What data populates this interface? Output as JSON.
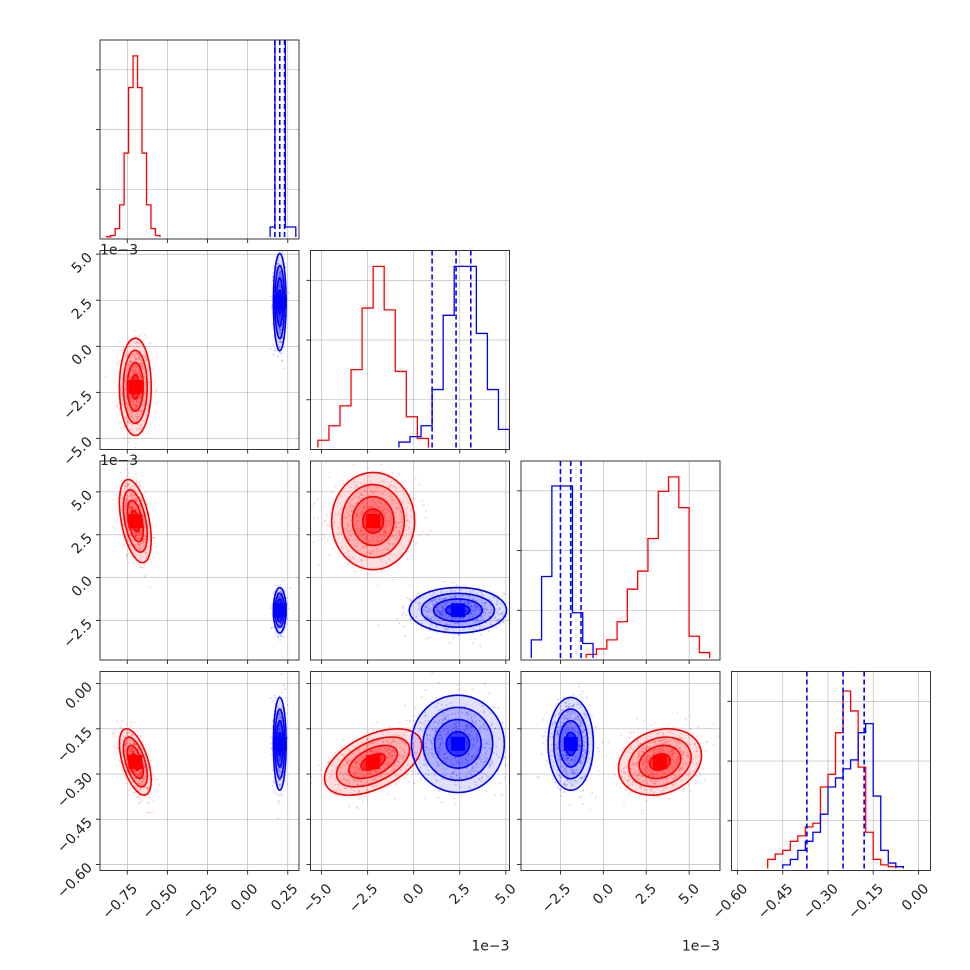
{
  "chart_data": {
    "type": "corner",
    "n_params": 4,
    "grid": true,
    "colors": {
      "red": "#ff0000",
      "blue": "#0000ff"
    },
    "series": [
      {
        "color": "#ff0000",
        "means": [
          -0.7,
          -0.0022,
          0.0033,
          -0.26
        ],
        "sds": [
          0.045,
          0.0012,
          0.0011,
          0.05
        ],
        "corr": {
          "0-2": -0.45,
          "0-3": -0.55,
          "1-3": 0.5,
          "2-3": 0.2
        },
        "hist_1": {
          "bins": [
            -5.2,
            -4.6,
            -4.0,
            -3.4,
            -2.8,
            -2.2,
            -1.6,
            -1.0,
            -0.4,
            0.2,
            0.8
          ],
          "counts": [
            0.04,
            0.12,
            0.23,
            0.43,
            0.77,
            1.0,
            0.76,
            0.42,
            0.17,
            0.05
          ]
        },
        "hist_2": {
          "bins": [
            -1.0,
            -0.4,
            0.2,
            0.8,
            1.4,
            2.0,
            2.6,
            3.2,
            3.8,
            4.4,
            5.0,
            5.6,
            6.2
          ],
          "counts": [
            0.02,
            0.05,
            0.1,
            0.2,
            0.38,
            0.48,
            0.66,
            0.92,
            1.0,
            0.83,
            0.12,
            0.03
          ]
        },
        "hist_3": {
          "bins": [
            -0.5,
            -0.475,
            -0.45,
            -0.425,
            -0.4,
            -0.375,
            -0.35,
            -0.325,
            -0.3,
            -0.275,
            -0.25,
            -0.225,
            -0.2,
            -0.175,
            -0.15,
            -0.125,
            -0.1,
            -0.075
          ],
          "counts": [
            0.05,
            0.08,
            0.1,
            0.15,
            0.18,
            0.23,
            0.25,
            0.45,
            0.52,
            0.75,
            0.98,
            0.87,
            0.56,
            0.2,
            0.05,
            0.02,
            0.01
          ]
        }
      },
      {
        "color": "#0000ff",
        "means": [
          0.2,
          0.0024,
          -0.0019,
          -0.2
        ],
        "sds": [
          0.018,
          0.0012,
          0.0006,
          0.07
        ],
        "corr": {},
        "hist_1": {
          "bins": [
            -0.8,
            -0.2,
            0.4,
            1.0,
            1.6,
            2.2,
            2.8,
            3.4,
            4.0,
            4.6,
            5.2
          ],
          "counts": [
            0.03,
            0.06,
            0.12,
            0.32,
            0.73,
            1.0,
            1.0,
            0.63,
            0.32,
            0.1
          ]
        },
        "hist_2": {
          "bins": [
            -4.2,
            -3.6,
            -3.0,
            -2.4,
            -1.8,
            -1.2,
            -0.6
          ],
          "counts": [
            0.1,
            0.45,
            0.95,
            0.95,
            0.25,
            0.08
          ]
        },
        "hist_3": {
          "bins": [
            -0.45,
            -0.425,
            -0.4,
            -0.375,
            -0.35,
            -0.325,
            -0.3,
            -0.275,
            -0.25,
            -0.225,
            -0.2,
            -0.175,
            -0.15,
            -0.125,
            -0.1,
            -0.075,
            -0.05
          ],
          "counts": [
            0.02,
            0.05,
            0.1,
            0.15,
            0.2,
            0.3,
            0.45,
            0.5,
            0.55,
            0.6,
            0.75,
            0.8,
            0.4,
            0.1,
            0.03,
            0.01
          ]
        }
      }
    ],
    "blue_quantiles": [
      [
        0.17,
        0.2,
        0.23
      ],
      [
        0.001,
        0.0023,
        0.0031
      ],
      [
        -0.0025,
        -0.0019,
        -0.0013
      ],
      [
        -0.37,
        -0.25,
        -0.18
      ]
    ],
    "blue_hist_0_range": [
      0.14,
      0.3
    ],
    "axes": [
      {
        "range": [
          -0.92,
          0.32
        ],
        "ticks": [
          -0.75,
          -0.5,
          -0.25,
          0.0,
          0.25
        ],
        "tick_labels": [
          "−0.75",
          "−0.50",
          "−0.25",
          "0.00",
          "0.25"
        ],
        "offset_text": ""
      },
      {
        "range": [
          -0.0056,
          0.0052
        ],
        "ticks": [
          -0.005,
          -0.0025,
          0.0,
          0.0025,
          0.005
        ],
        "tick_labels": [
          "−5.0",
          "−2.5",
          "0.0",
          "2.5",
          "5.0"
        ],
        "offset_text": "1e−3"
      },
      {
        "range": [
          -0.0048,
          0.0068
        ],
        "ticks": [
          -0.0025,
          0.0,
          0.0025,
          0.005
        ],
        "tick_labels": [
          "−2.5",
          "0.0",
          "2.5",
          "5.0"
        ],
        "offset_text": "1e−3"
      },
      {
        "range": [
          -0.62,
          0.04
        ],
        "ticks": [
          -0.6,
          -0.45,
          -0.3,
          -0.15,
          0.0
        ],
        "tick_labels": [
          "−0.60",
          "−0.45",
          "−0.30",
          "−0.15",
          "0.00"
        ],
        "offset_text": ""
      }
    ]
  }
}
